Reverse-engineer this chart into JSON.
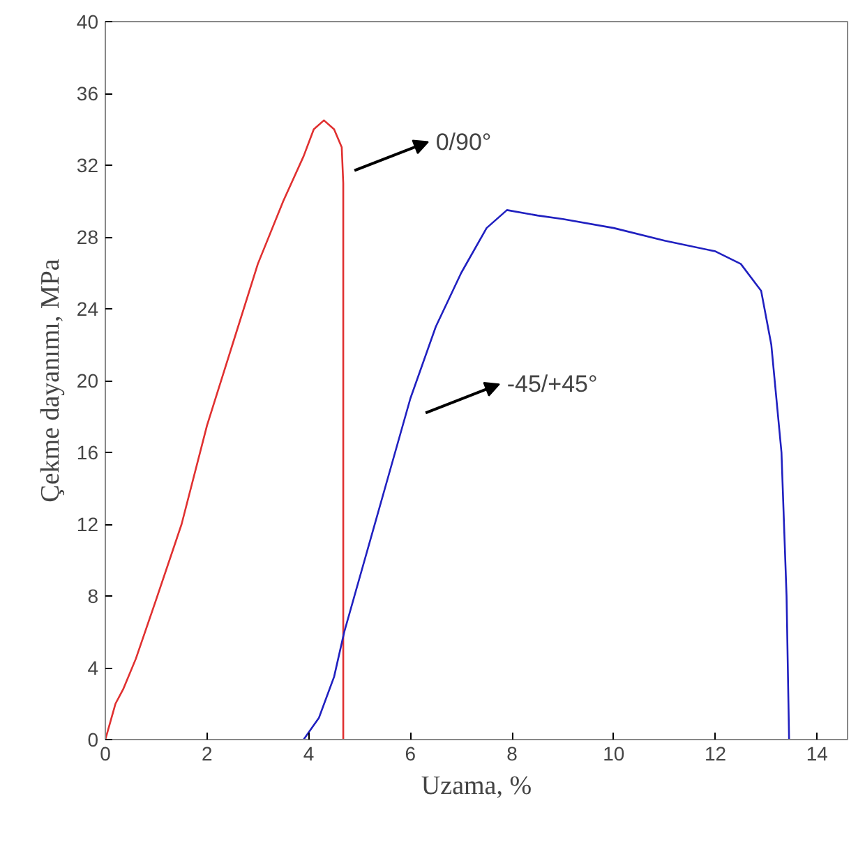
{
  "chart_data": {
    "type": "line",
    "xlabel": "Uzama, %",
    "ylabel": "Çekme dayanımı, MPa",
    "xlim": [
      0,
      14.6
    ],
    "ylim": [
      0,
      40
    ],
    "xticks": [
      0,
      2,
      4,
      6,
      8,
      10,
      12,
      14
    ],
    "yticks": [
      0,
      4,
      8,
      12,
      16,
      20,
      24,
      28,
      32,
      36,
      40
    ],
    "grid": false,
    "marker": "none",
    "line_style": "solid",
    "series": [
      {
        "color": "#e03030",
        "x": [
          0,
          0.2,
          0.35,
          0.6,
          1,
          1.5,
          2,
          2.5,
          3,
          3.5,
          3.9,
          4.1,
          4.3,
          4.5,
          4.65,
          4.68,
          4.68
        ],
        "values": [
          0,
          2,
          2.8,
          4.5,
          7.8,
          12,
          17.5,
          22,
          26.5,
          30,
          32.5,
          34,
          34.5,
          34,
          33,
          31,
          0
        ]
      },
      {
        "color": "#2020c0",
        "x": [
          3.9,
          4.2,
          4.5,
          4.7,
          5,
          5.5,
          6,
          6.5,
          7,
          7.5,
          7.9,
          8.5,
          9,
          10,
          11,
          12,
          12.5,
          12.9,
          13.1,
          13.3,
          13.4,
          13.45
        ],
        "values": [
          0,
          1.2,
          3.5,
          6,
          9,
          14,
          19,
          23,
          26,
          28.5,
          29.5,
          29.2,
          29,
          28.5,
          27.8,
          27.2,
          26.5,
          25,
          22,
          16,
          8,
          0
        ]
      }
    ],
    "annotations": [
      "0/90°",
      "-45/+45°"
    ]
  }
}
